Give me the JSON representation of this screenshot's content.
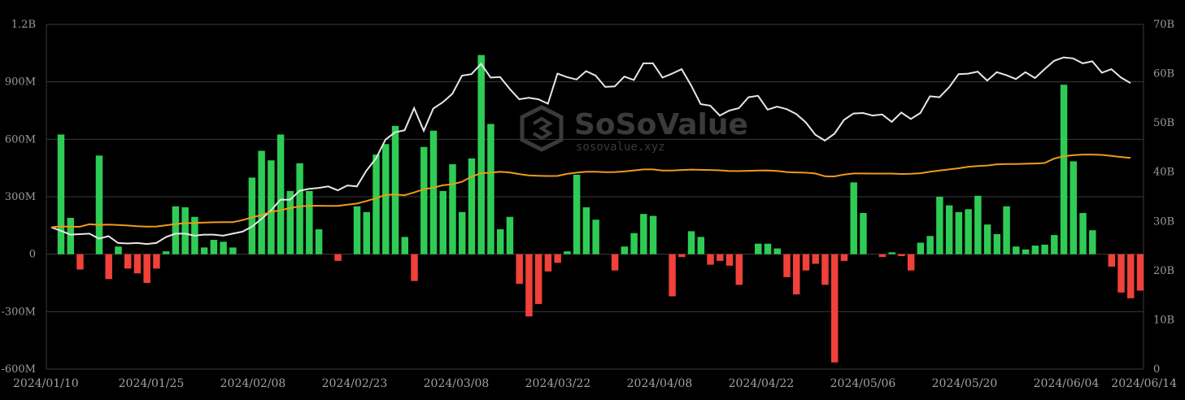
{
  "watermark": {
    "brand": "SoSoValue",
    "url": "sosovalue.xyz"
  },
  "chart_data": {
    "type": "bar",
    "left_axis": {
      "ticks": [
        "1.2B",
        "900M",
        "600M",
        "300M",
        "0",
        "-300M",
        "-600M"
      ],
      "min": -600,
      "max": 1200,
      "unit": "M"
    },
    "right_axis": {
      "ticks": [
        "70B",
        "60B",
        "50B",
        "40B",
        "30B",
        "20B",
        "10B",
        "0"
      ],
      "min": 0,
      "max": 70,
      "unit": "B"
    },
    "x_ticks": [
      "2024/01/10",
      "2024/01/25",
      "2024/02/08",
      "2024/02/23",
      "2024/03/08",
      "2024/03/22",
      "2024/04/08",
      "2024/04/22",
      "2024/05/06",
      "2024/05/20",
      "2024/06/04",
      "2024/06/14"
    ],
    "grid": true,
    "colors": {
      "positive": "#2ecc55",
      "negative": "#f0413a",
      "white_line": "#e6e6e6",
      "orange_line": "#f09a1a"
    },
    "daily_net_inflow_musd": [
      625,
      190,
      -80,
      0,
      515,
      -130,
      40,
      -75,
      -100,
      -150,
      -75,
      15,
      250,
      245,
      195,
      35,
      75,
      65,
      35,
      0,
      400,
      540,
      490,
      625,
      330,
      475,
      330,
      130,
      0,
      -35,
      0,
      250,
      220,
      520,
      575,
      670,
      90,
      -140,
      560,
      645,
      330,
      470,
      220,
      500,
      1040,
      680,
      130,
      195,
      -155,
      -325,
      -260,
      -90,
      -45,
      15,
      415,
      245,
      180,
      0,
      -85,
      40,
      110,
      210,
      200,
      0,
      -220,
      -15,
      120,
      90,
      -55,
      -35,
      -60,
      -160,
      0,
      55,
      55,
      30,
      -120,
      -210,
      -85,
      -50,
      -160,
      -565,
      -35,
      375,
      215,
      0,
      -15,
      10,
      -10,
      -85,
      60,
      95,
      300,
      255,
      220,
      235,
      305,
      155,
      105,
      250,
      40,
      25,
      45,
      50,
      100,
      885,
      485,
      215,
      125,
      0,
      -65,
      -200,
      -230,
      -190
    ],
    "total_net_assets_busd": [
      28.8,
      28.1,
      27.3,
      27.4,
      27.5,
      26.5,
      27.0,
      25.6,
      25.5,
      25.6,
      25.4,
      25.6,
      26.8,
      27.5,
      27.5,
      27.1,
      27.3,
      27.3,
      27.1,
      27.5,
      27.9,
      28.9,
      30.5,
      32.2,
      34.4,
      34.4,
      36.2,
      36.6,
      36.8,
      37.1,
      36.3,
      37.3,
      37.1,
      40.3,
      42.8,
      46.6,
      48.1,
      48.5,
      53.0,
      48.4,
      52.9,
      54.2,
      55.9,
      59.6,
      59.9,
      62.0,
      59.2,
      59.3,
      56.9,
      54.8,
      55.1,
      54.8,
      53.9,
      60.0,
      59.3,
      58.8,
      60.5,
      59.6,
      57.3,
      57.4,
      59.4,
      58.7,
      62.1,
      62.1,
      59.2,
      60.0,
      60.9,
      57.6,
      53.8,
      53.5,
      51.5,
      52.5,
      53.0,
      55.2,
      55.5,
      52.7,
      53.3,
      52.8,
      51.8,
      50.1,
      47.6,
      46.4,
      47.8,
      50.6,
      51.9,
      52.0,
      51.5,
      51.7,
      50.2,
      52.1,
      50.8,
      52.0,
      55.4,
      55.2,
      57.2,
      59.9,
      60.0,
      60.4,
      58.6,
      60.3,
      59.7,
      58.9,
      60.3,
      59.1,
      60.9,
      62.6,
      63.3,
      63.1,
      62.1,
      62.5,
      60.2,
      60.9,
      59.2,
      58.1
    ]
  }
}
